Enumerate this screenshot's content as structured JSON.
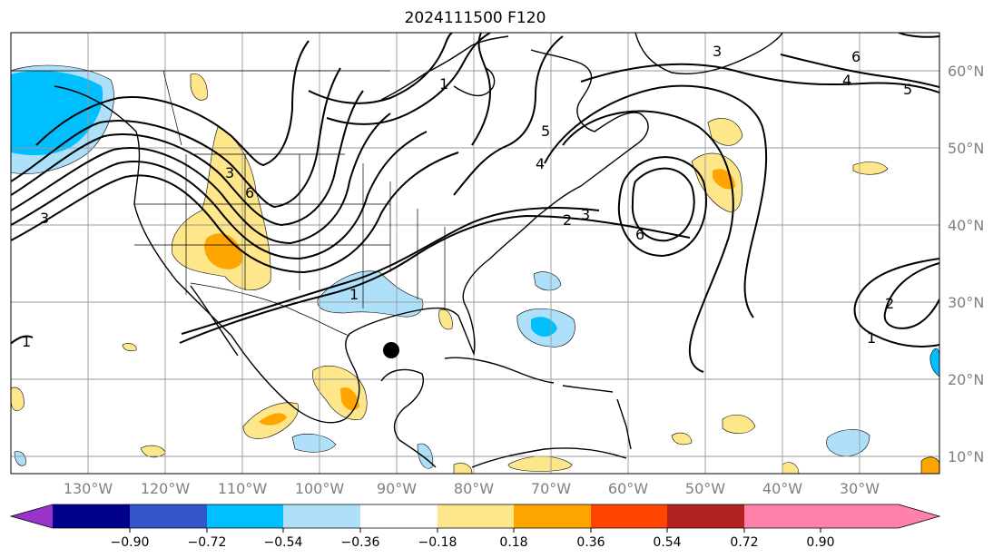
{
  "title": "2024111500 F120",
  "lat_labels": [
    "60°N",
    "50°N",
    "40°N",
    "30°N",
    "20°N",
    "10°N"
  ],
  "lon_labels": [
    "130°W",
    "120°W",
    "110°W",
    "100°W",
    "90°W",
    "80°W",
    "70°W",
    "60°W",
    "50°W",
    "40°W",
    "30°W"
  ],
  "colorbar": {
    "ticks": [
      "−0.90",
      "−0.72",
      "−0.54",
      "−0.36",
      "−0.18",
      "0.18",
      "0.36",
      "0.54",
      "0.72",
      "0.90"
    ],
    "colors": [
      "#9933cc",
      "#00008b",
      "#3355cc",
      "#00bfff",
      "#aee0fa",
      "#ffffff",
      "#fee68a",
      "#ffa500",
      "#ff4500",
      "#b22222",
      "#ff80aa"
    ]
  },
  "contour_labels": [
    "1",
    "2",
    "3",
    "4",
    "5",
    "6"
  ],
  "marker": {
    "name": "storm-center",
    "lon": "90°W",
    "lat": "24°N"
  }
}
